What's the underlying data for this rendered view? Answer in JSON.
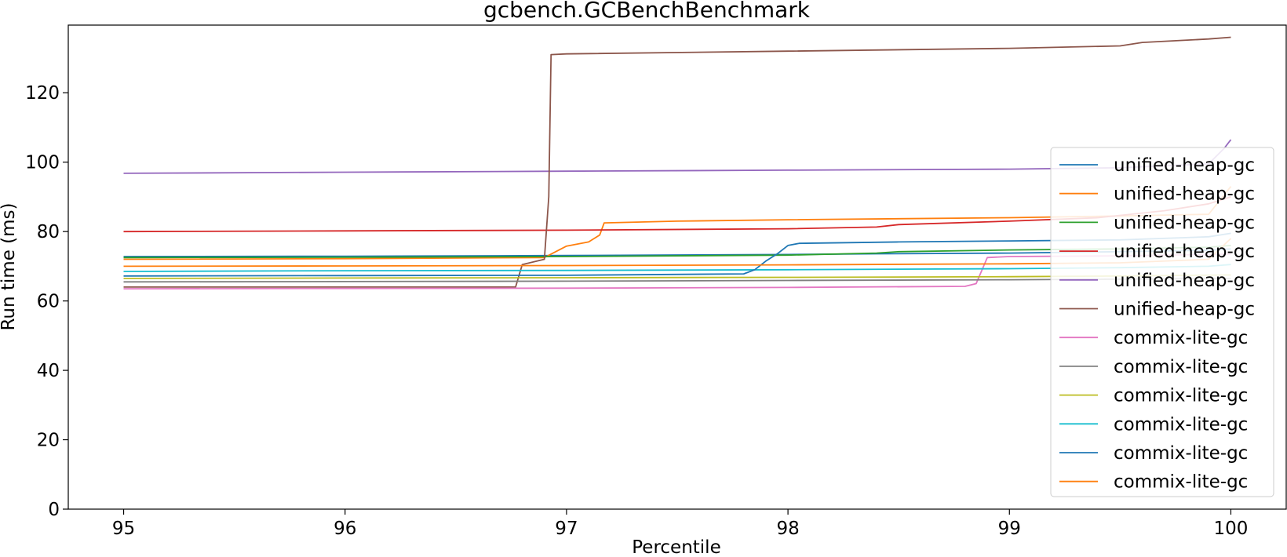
{
  "chart_data": {
    "type": "line",
    "title": "gcbench.GCBenchBenchmark",
    "xlabel": "Percentile",
    "ylabel": "Run time (ms)",
    "xlim": [
      94.75,
      100.25
    ],
    "ylim": [
      0,
      139.5
    ],
    "xticks": [
      95,
      96,
      97,
      98,
      99,
      100
    ],
    "yticks": [
      0,
      20,
      40,
      60,
      80,
      100,
      120
    ],
    "grid": false,
    "legend_position": "center-right",
    "series": [
      {
        "name": "unified-heap-gc",
        "color": "#1f77b4",
        "points": [
          [
            95,
            72.8
          ],
          [
            96,
            72.9
          ],
          [
            97,
            73.1
          ],
          [
            98,
            73.4
          ],
          [
            98.4,
            73.6
          ],
          [
            99,
            73.8
          ],
          [
            99.5,
            74.2
          ],
          [
            99.9,
            74.6
          ],
          [
            100,
            75.0
          ]
        ]
      },
      {
        "name": "unified-heap-gc",
        "color": "#ff7f0e",
        "points": [
          [
            95,
            72.0
          ],
          [
            96,
            72.2
          ],
          [
            96.9,
            72.5
          ],
          [
            97.0,
            75.8
          ],
          [
            97.1,
            77.0
          ],
          [
            97.15,
            79.0
          ],
          [
            97.17,
            82.5
          ],
          [
            97.5,
            83.0
          ],
          [
            98,
            83.4
          ],
          [
            99,
            84.0
          ],
          [
            99.5,
            84.5
          ],
          [
            99.9,
            85.0
          ],
          [
            100,
            93.0
          ]
        ]
      },
      {
        "name": "unified-heap-gc",
        "color": "#2ca02c",
        "points": [
          [
            95,
            72.5
          ],
          [
            96,
            72.6
          ],
          [
            97,
            72.8
          ],
          [
            98,
            73.2
          ],
          [
            98.4,
            73.8
          ],
          [
            98.5,
            74.2
          ],
          [
            99,
            74.7
          ],
          [
            99.5,
            75.0
          ],
          [
            99.9,
            75.5
          ],
          [
            100,
            76.0
          ]
        ]
      },
      {
        "name": "unified-heap-gc",
        "color": "#d62728",
        "points": [
          [
            95,
            80.0
          ],
          [
            96,
            80.2
          ],
          [
            97,
            80.4
          ],
          [
            98,
            80.8
          ],
          [
            98.4,
            81.3
          ],
          [
            98.5,
            82.0
          ],
          [
            99,
            83.0
          ],
          [
            99.4,
            84.0
          ],
          [
            99.7,
            86.0
          ],
          [
            99.9,
            88.0
          ],
          [
            100,
            90.0
          ]
        ]
      },
      {
        "name": "unified-heap-gc",
        "color": "#9467bd",
        "points": [
          [
            95,
            96.8
          ],
          [
            96,
            97.1
          ],
          [
            97,
            97.4
          ],
          [
            98,
            97.7
          ],
          [
            99,
            98.0
          ],
          [
            99.5,
            98.4
          ],
          [
            99.9,
            99.5
          ],
          [
            99.97,
            104.0
          ],
          [
            100,
            106.5
          ]
        ]
      },
      {
        "name": "unified-heap-gc",
        "color": "#8c564b",
        "points": [
          [
            95,
            64.0
          ],
          [
            96,
            64.0
          ],
          [
            96.77,
            64.0
          ],
          [
            96.8,
            70.5
          ],
          [
            96.9,
            72.0
          ],
          [
            96.92,
            90.0
          ],
          [
            96.93,
            131.0
          ],
          [
            97,
            131.2
          ],
          [
            98,
            132.0
          ],
          [
            99,
            132.8
          ],
          [
            99.5,
            133.5
          ],
          [
            99.6,
            134.5
          ],
          [
            99.9,
            135.5
          ],
          [
            100,
            136.0
          ]
        ]
      },
      {
        "name": "commix-lite-gc",
        "color": "#e377c2",
        "points": [
          [
            95,
            63.5
          ],
          [
            96,
            63.6
          ],
          [
            97,
            63.7
          ],
          [
            98,
            63.9
          ],
          [
            98.8,
            64.2
          ],
          [
            98.85,
            65.0
          ],
          [
            98.9,
            72.5
          ],
          [
            99,
            72.8
          ],
          [
            99.5,
            73.0
          ],
          [
            100,
            73.5
          ]
        ]
      },
      {
        "name": "commix-lite-gc",
        "color": "#7f7f7f",
        "points": [
          [
            95,
            65.5
          ],
          [
            96,
            65.6
          ],
          [
            97,
            65.7
          ],
          [
            98,
            65.9
          ],
          [
            99,
            66.1
          ],
          [
            99.5,
            66.3
          ],
          [
            100,
            66.5
          ]
        ]
      },
      {
        "name": "commix-lite-gc",
        "color": "#bcbd22",
        "points": [
          [
            95,
            66.5
          ],
          [
            96,
            66.6
          ],
          [
            97,
            66.7
          ],
          [
            98,
            66.8
          ],
          [
            99,
            67.0
          ],
          [
            99.5,
            67.2
          ],
          [
            100,
            67.5
          ]
        ]
      },
      {
        "name": "commix-lite-gc",
        "color": "#17becf",
        "points": [
          [
            95,
            68.5
          ],
          [
            96,
            68.7
          ],
          [
            97,
            68.8
          ],
          [
            98,
            69.0
          ],
          [
            99,
            69.3
          ],
          [
            99.5,
            69.6
          ],
          [
            99.9,
            70.0
          ],
          [
            100,
            70.5
          ]
        ]
      },
      {
        "name": "commix-lite-gc",
        "color": "#1f77b4",
        "points": [
          [
            95,
            67.2
          ],
          [
            96,
            67.3
          ],
          [
            97,
            67.4
          ],
          [
            97.8,
            67.8
          ],
          [
            97.85,
            69.0
          ],
          [
            97.9,
            71.5
          ],
          [
            97.95,
            73.5
          ],
          [
            98.0,
            76.0
          ],
          [
            98.05,
            76.6
          ],
          [
            98.5,
            77.0
          ],
          [
            99,
            77.3
          ],
          [
            99.5,
            77.6
          ],
          [
            99.9,
            78.5
          ],
          [
            100,
            79.5
          ]
        ]
      },
      {
        "name": "commix-lite-gc",
        "color": "#ff7f0e",
        "points": [
          [
            95,
            70.0
          ],
          [
            96,
            70.1
          ],
          [
            97,
            70.2
          ],
          [
            98,
            70.4
          ],
          [
            99,
            70.7
          ],
          [
            99.5,
            71.0
          ],
          [
            99.9,
            72.0
          ],
          [
            100,
            78.0
          ]
        ]
      }
    ]
  }
}
